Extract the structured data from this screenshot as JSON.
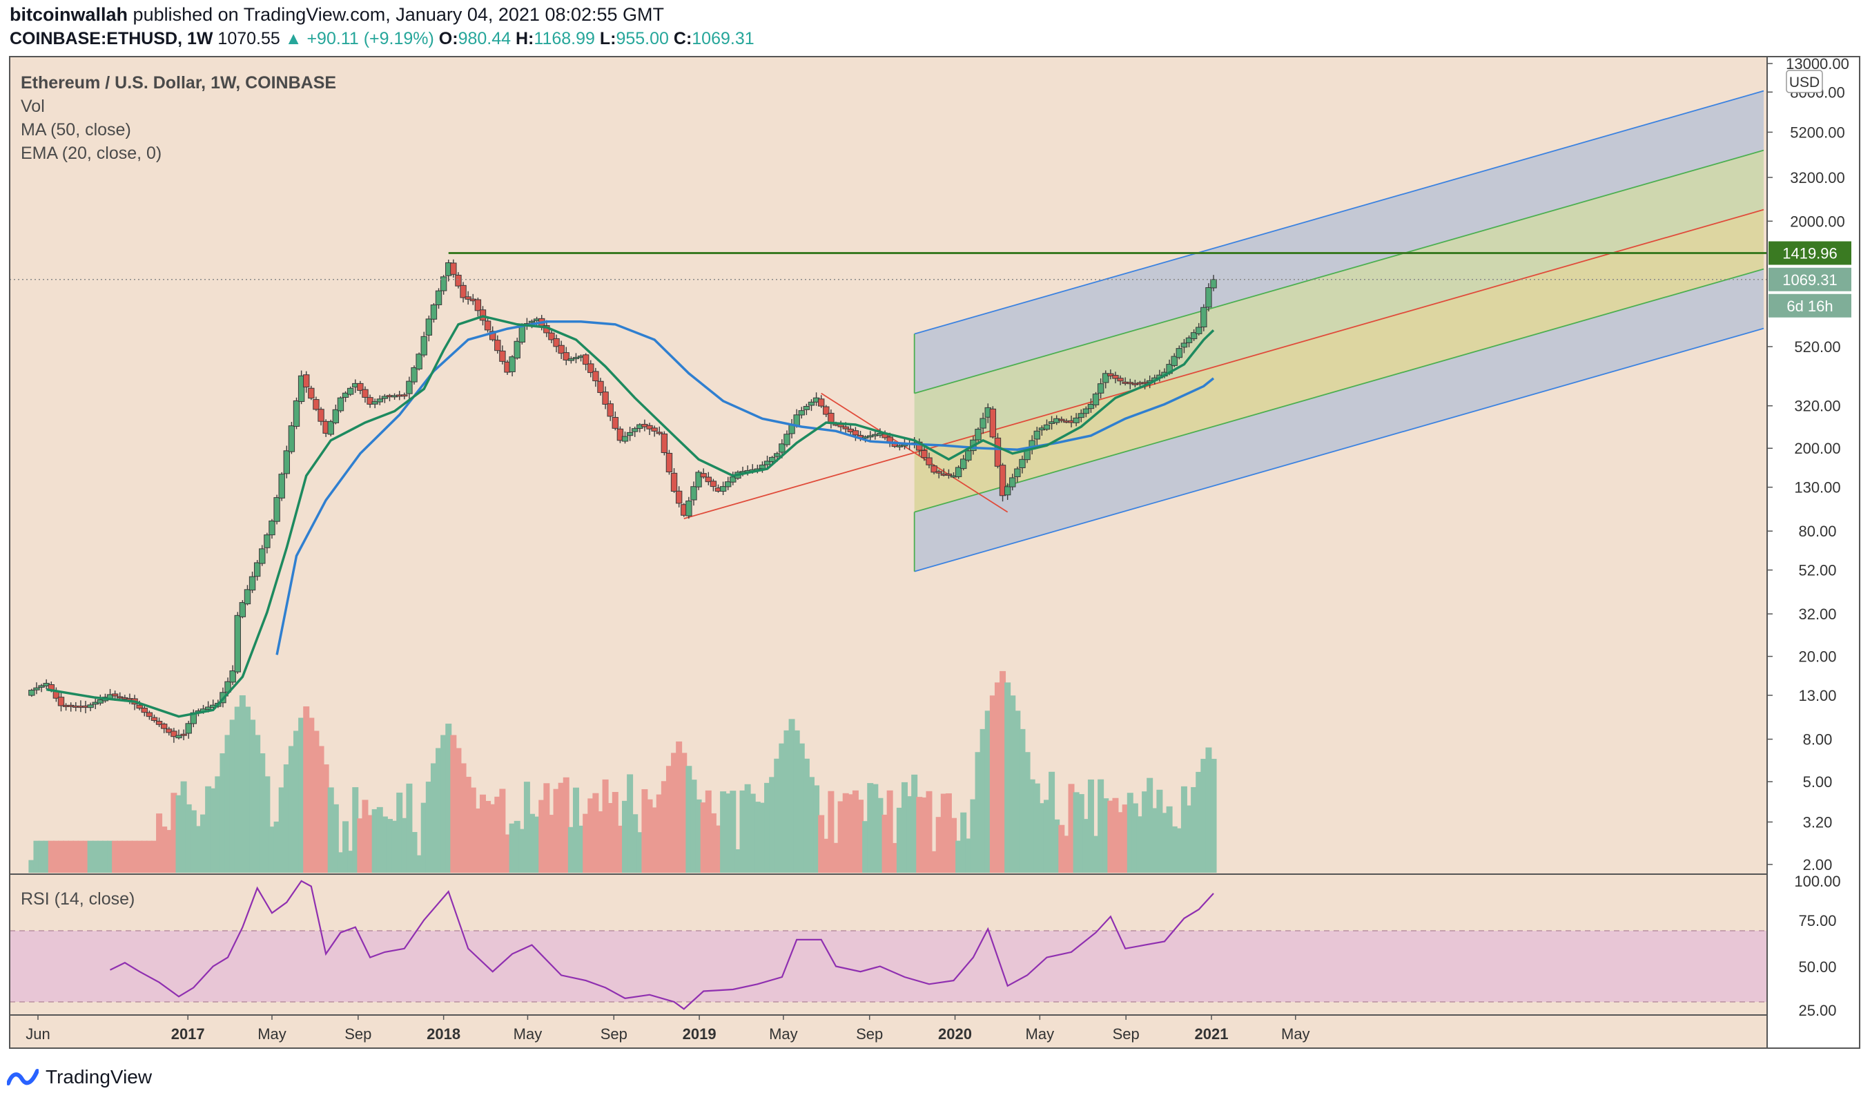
{
  "header": {
    "publisher": "bitcoinwallah",
    "published_text": "published on TradingView.com, January 04, 2021 08:02:55 GMT",
    "symbol_line": "COINBASE:ETHUSD, 1W",
    "price": "1070.55",
    "change": "+90.11 (+9.19%)",
    "o_label": "O:",
    "o": "980.44",
    "h_label": "H:",
    "h": "1168.99",
    "l_label": "L:",
    "l": "955.00",
    "c_label": "C:",
    "c": "1069.31"
  },
  "legend": {
    "title": "Ethereum / U.S. Dollar, 1W, COINBASE",
    "vol": "Vol",
    "ma": "MA (50, close)",
    "ema": "EMA (20, close, 0)",
    "rsi": "RSI (14, close)"
  },
  "currency": "USD",
  "price_labels": {
    "resistance": "1419.96",
    "last": "1069.31",
    "countdown": "6d 16h"
  },
  "branding": "TradingView",
  "colors": {
    "background": "#f2e0d0",
    "bull": "#52a876",
    "bear": "#d9574e",
    "ma": "#2f7fd0",
    "ema": "#1d8a5f",
    "rsi": "#8f2fb0",
    "resistance": "#3a7a22"
  },
  "chart_data": [
    {
      "type": "candlestick",
      "title": "Ethereum / U.S. Dollar, 1W, COINBASE",
      "y_scale": "log",
      "y_ticks": [
        "13000.00",
        "8000.00",
        "5200.00",
        "3200.00",
        "2000.00",
        "520.00",
        "320.00",
        "200.00",
        "130.00",
        "80.00",
        "52.00",
        "32.00",
        "20.00",
        "13.00",
        "8.00",
        "5.00",
        "3.20",
        "2.00"
      ],
      "x_ticks": [
        "Jun",
        "2017",
        "May",
        "Sep",
        "2018",
        "May",
        "Sep",
        "2019",
        "May",
        "Sep",
        "2020",
        "May",
        "Sep",
        "2021",
        "May"
      ],
      "x_tick_dates": [
        "2016-06-01",
        "2017-01-01",
        "2017-05-01",
        "2017-09-01",
        "2018-01-01",
        "2018-05-01",
        "2018-09-01",
        "2019-01-01",
        "2019-05-01",
        "2019-09-01",
        "2020-01-01",
        "2020-05-01",
        "2020-09-01",
        "2021-01-01",
        "2021-05-01"
      ],
      "close_path": [
        [
          "2016-05-23",
          13
        ],
        [
          "2016-06-13",
          14
        ],
        [
          "2016-07-04",
          11
        ],
        [
          "2016-08-08",
          10.8
        ],
        [
          "2016-09-12",
          12.4
        ],
        [
          "2016-10-10",
          11.7
        ],
        [
          "2016-11-07",
          9.8
        ],
        [
          "2016-12-12",
          7.9
        ],
        [
          "2016-12-26",
          8.1
        ],
        [
          "2017-01-09",
          10.2
        ],
        [
          "2017-02-13",
          11.3
        ],
        [
          "2017-03-06",
          16
        ],
        [
          "2017-03-13",
          29
        ],
        [
          "2017-04-03",
          44
        ],
        [
          "2017-05-01",
          80
        ],
        [
          "2017-05-22",
          170
        ],
        [
          "2017-06-12",
          380
        ],
        [
          "2017-07-03",
          265
        ],
        [
          "2017-07-17",
          205
        ],
        [
          "2017-08-07",
          300
        ],
        [
          "2017-08-28",
          350
        ],
        [
          "2017-09-18",
          280
        ],
        [
          "2017-10-09",
          305
        ],
        [
          "2017-11-06",
          310
        ],
        [
          "2017-11-27",
          480
        ],
        [
          "2017-12-11",
          700
        ],
        [
          "2018-01-08",
          1280
        ],
        [
          "2018-01-29",
          880
        ],
        [
          "2018-02-12",
          850
        ],
        [
          "2018-03-12",
          560
        ],
        [
          "2018-04-02",
          395
        ],
        [
          "2018-04-23",
          650
        ],
        [
          "2018-05-14",
          700
        ],
        [
          "2018-06-04",
          560
        ],
        [
          "2018-06-25",
          450
        ],
        [
          "2018-07-16",
          470
        ],
        [
          "2018-08-06",
          360
        ],
        [
          "2018-08-20",
          280
        ],
        [
          "2018-09-10",
          190
        ],
        [
          "2018-10-08",
          225
        ],
        [
          "2018-11-05",
          205
        ],
        [
          "2018-11-26",
          110
        ],
        [
          "2018-12-10",
          85
        ],
        [
          "2018-12-31",
          135
        ],
        [
          "2019-01-28",
          110
        ],
        [
          "2019-02-25",
          135
        ],
        [
          "2019-03-25",
          140
        ],
        [
          "2019-04-22",
          165
        ],
        [
          "2019-05-20",
          250
        ],
        [
          "2019-06-17",
          300
        ],
        [
          "2019-07-08",
          230
        ],
        [
          "2019-07-29",
          215
        ],
        [
          "2019-08-19",
          195
        ],
        [
          "2019-09-16",
          205
        ],
        [
          "2019-10-07",
          178
        ],
        [
          "2019-11-04",
          185
        ],
        [
          "2019-12-02",
          135
        ],
        [
          "2019-12-30",
          130
        ],
        [
          "2020-01-20",
          170
        ],
        [
          "2020-02-17",
          270
        ],
        [
          "2020-03-09",
          105
        ],
        [
          "2020-03-30",
          140
        ],
        [
          "2020-04-27",
          210
        ],
        [
          "2020-05-25",
          240
        ],
        [
          "2020-06-15",
          230
        ],
        [
          "2020-07-13",
          280
        ],
        [
          "2020-08-03",
          390
        ],
        [
          "2020-08-31",
          350
        ],
        [
          "2020-09-28",
          350
        ],
        [
          "2020-10-26",
          395
        ],
        [
          "2020-11-16",
          510
        ],
        [
          "2020-12-14",
          640
        ],
        [
          "2020-12-28",
          980
        ],
        [
          "2021-01-04",
          1069.31
        ]
      ],
      "ma50_path": [
        [
          "2017-05-08",
          19
        ],
        [
          "2017-06-05",
          55
        ],
        [
          "2017-07-17",
          100
        ],
        [
          "2017-09-04",
          165
        ],
        [
          "2017-10-30",
          250
        ],
        [
          "2017-12-18",
          400
        ],
        [
          "2018-02-05",
          560
        ],
        [
          "2018-04-02",
          630
        ],
        [
          "2018-05-28",
          680
        ],
        [
          "2018-07-16",
          680
        ],
        [
          "2018-09-03",
          660
        ],
        [
          "2018-10-29",
          560
        ],
        [
          "2018-12-17",
          390
        ],
        [
          "2019-02-04",
          290
        ],
        [
          "2019-04-01",
          240
        ],
        [
          "2019-05-27",
          220
        ],
        [
          "2019-07-15",
          210
        ],
        [
          "2019-09-02",
          188
        ],
        [
          "2019-10-28",
          183
        ],
        [
          "2019-12-16",
          180
        ],
        [
          "2020-02-03",
          175
        ],
        [
          "2020-03-30",
          172
        ],
        [
          "2020-05-25",
          185
        ],
        [
          "2020-07-13",
          200
        ],
        [
          "2020-08-31",
          240
        ],
        [
          "2020-10-26",
          280
        ],
        [
          "2020-12-21",
          340
        ],
        [
          "2021-01-04",
          370
        ]
      ],
      "ema20_path": [
        [
          "2016-06-13",
          13.1
        ],
        [
          "2016-08-22",
          12
        ],
        [
          "2016-10-17",
          11.5
        ],
        [
          "2016-12-19",
          9.8
        ],
        [
          "2017-02-06",
          10.5
        ],
        [
          "2017-03-20",
          15
        ],
        [
          "2017-04-24",
          30
        ],
        [
          "2017-05-22",
          60
        ],
        [
          "2017-06-19",
          130
        ],
        [
          "2017-07-24",
          190
        ],
        [
          "2017-09-11",
          230
        ],
        [
          "2017-10-23",
          260
        ],
        [
          "2017-12-04",
          330
        ],
        [
          "2018-01-01",
          500
        ],
        [
          "2018-01-22",
          660
        ],
        [
          "2018-02-26",
          720
        ],
        [
          "2018-04-16",
          660
        ],
        [
          "2018-05-28",
          640
        ],
        [
          "2018-07-09",
          560
        ],
        [
          "2018-08-20",
          420
        ],
        [
          "2018-10-01",
          300
        ],
        [
          "2018-11-19",
          210
        ],
        [
          "2018-12-31",
          155
        ],
        [
          "2019-02-18",
          130
        ],
        [
          "2019-04-08",
          140
        ],
        [
          "2019-05-20",
          185
        ],
        [
          "2019-07-01",
          230
        ],
        [
          "2019-08-12",
          225
        ],
        [
          "2019-09-23",
          205
        ],
        [
          "2019-11-04",
          190
        ],
        [
          "2019-12-23",
          155
        ],
        [
          "2020-02-10",
          190
        ],
        [
          "2020-03-23",
          165
        ],
        [
          "2020-05-11",
          180
        ],
        [
          "2020-06-29",
          220
        ],
        [
          "2020-08-17",
          300
        ],
        [
          "2020-10-05",
          350
        ],
        [
          "2020-11-23",
          430
        ],
        [
          "2020-12-21",
          560
        ],
        [
          "2021-01-04",
          620
        ]
      ],
      "volume_scale": "log",
      "volume_peaks": [
        [
          "2017-03-20",
          13
        ],
        [
          "2017-06-19",
          11.5
        ],
        [
          "2018-01-08",
          9.5
        ],
        [
          "2018-12-03",
          7.8
        ],
        [
          "2019-05-13",
          10
        ],
        [
          "2020-03-09",
          17
        ],
        [
          "2020-03-16",
          10.5
        ],
        [
          "2020-12-28",
          7.3
        ]
      ],
      "annotations": {
        "resistance_level": 1419.96,
        "last_price": 1069.31,
        "pitchfork_pivots": [
          [
            "2018-12-10",
            82
          ],
          [
            "2019-06-24",
            315
          ],
          [
            "2020-03-16",
            88
          ]
        ]
      }
    },
    {
      "type": "line",
      "title": "RSI (14, close)",
      "y_ticks": [
        "100.00",
        "75.00",
        "50.00",
        "25.00"
      ],
      "ylim": [
        25,
        100
      ],
      "bands": [
        30,
        70
      ],
      "values": [
        [
          "2016-09-12",
          48
        ],
        [
          "2016-10-03",
          52
        ],
        [
          "2016-10-24",
          47
        ],
        [
          "2016-11-21",
          41
        ],
        [
          "2016-12-19",
          33
        ],
        [
          "2017-01-09",
          38
        ],
        [
          "2017-02-06",
          50
        ],
        [
          "2017-02-27",
          55
        ],
        [
          "2017-03-20",
          72
        ],
        [
          "2017-04-10",
          94
        ],
        [
          "2017-05-01",
          80
        ],
        [
          "2017-05-22",
          86
        ],
        [
          "2017-06-12",
          98
        ],
        [
          "2017-06-26",
          95
        ],
        [
          "2017-07-17",
          57
        ],
        [
          "2017-08-07",
          69
        ],
        [
          "2017-08-28",
          72
        ],
        [
          "2017-09-18",
          55
        ],
        [
          "2017-10-09",
          58
        ],
        [
          "2017-11-06",
          60
        ],
        [
          "2017-12-04",
          76
        ],
        [
          "2018-01-08",
          92
        ],
        [
          "2018-02-05",
          60
        ],
        [
          "2018-03-12",
          47
        ],
        [
          "2018-04-09",
          57
        ],
        [
          "2018-05-07",
          62
        ],
        [
          "2018-06-18",
          45
        ],
        [
          "2018-07-23",
          42
        ],
        [
          "2018-08-20",
          38
        ],
        [
          "2018-09-17",
          32
        ],
        [
          "2018-10-22",
          34
        ],
        [
          "2018-11-26",
          30
        ],
        [
          "2018-12-10",
          26
        ],
        [
          "2019-01-07",
          36
        ],
        [
          "2019-02-18",
          37
        ],
        [
          "2019-03-25",
          40
        ],
        [
          "2019-04-29",
          44
        ],
        [
          "2019-05-20",
          65
        ],
        [
          "2019-06-24",
          65
        ],
        [
          "2019-07-15",
          50
        ],
        [
          "2019-08-19",
          47
        ],
        [
          "2019-09-16",
          50
        ],
        [
          "2019-10-21",
          44
        ],
        [
          "2019-11-25",
          40
        ],
        [
          "2019-12-30",
          42
        ],
        [
          "2020-01-27",
          55
        ],
        [
          "2020-02-17",
          71
        ],
        [
          "2020-03-16",
          39
        ],
        [
          "2020-04-13",
          45
        ],
        [
          "2020-05-11",
          55
        ],
        [
          "2020-06-15",
          58
        ],
        [
          "2020-07-20",
          69
        ],
        [
          "2020-08-10",
          78
        ],
        [
          "2020-08-31",
          60
        ],
        [
          "2020-09-28",
          62
        ],
        [
          "2020-10-26",
          64
        ],
        [
          "2020-11-23",
          77
        ],
        [
          "2020-12-14",
          82
        ],
        [
          "2021-01-04",
          91
        ]
      ]
    }
  ]
}
